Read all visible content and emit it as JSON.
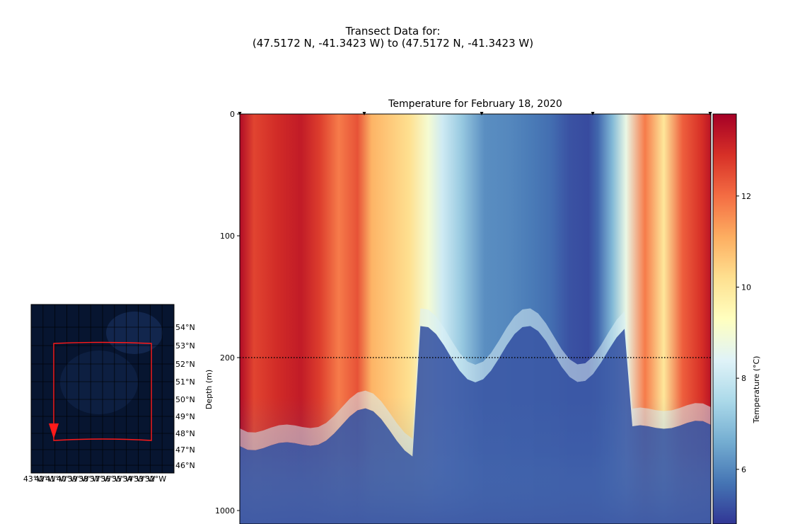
{
  "suptitle": {
    "line1": "Transect Data for:",
    "line2": "(47.5172 N, -41.3423 W) to (47.5172 N, -41.3423 W)"
  },
  "chart_data": [
    {
      "type": "heatmap",
      "title": "Temperature for February 18, 2020",
      "ylabel": "Depth (m)",
      "xlabel": "",
      "y_ticks": [
        {
          "label": "0",
          "value": 0
        },
        {
          "label": "100",
          "value": 100
        },
        {
          "label": "200",
          "value": 200
        },
        {
          "label": "1000",
          "value": 1000
        }
      ],
      "y_scale": "linear 0-200 m (upper), compressed 200-1000 m (lower)",
      "depth_reference_line": 200,
      "x_markers": 5,
      "colorbar": {
        "label": "Temperature (°C)",
        "colormap": "RdYlBu_r",
        "range": [
          4.8,
          13.8
        ],
        "ticks": [
          {
            "label": "6",
            "value": 6
          },
          {
            "label": "8",
            "value": 8
          },
          {
            "label": "10",
            "value": 10
          },
          {
            "label": "12",
            "value": 12
          }
        ]
      },
      "surface_temperature_profile": {
        "x_fraction": [
          0.0,
          0.03,
          0.08,
          0.13,
          0.17,
          0.21,
          0.25,
          0.28,
          0.32,
          0.36,
          0.4,
          0.43,
          0.47,
          0.52,
          0.57,
          0.62,
          0.66,
          0.7,
          0.74,
          0.76,
          0.79,
          0.82,
          0.86,
          0.9,
          0.94,
          0.98,
          1.0
        ],
        "temperature": [
          13.6,
          12.6,
          13.0,
          13.3,
          12.7,
          11.8,
          12.4,
          11.0,
          10.6,
          10.2,
          9.0,
          8.1,
          7.2,
          6.1,
          6.0,
          5.8,
          5.6,
          5.2,
          5.1,
          5.5,
          6.8,
          8.7,
          11.8,
          10.0,
          12.2,
          12.9,
          13.4
        ]
      },
      "deep_temperature": 5.3
    },
    {
      "type": "map",
      "x_ticks": [
        "43°W",
        "42°W",
        "41°W",
        "40°W",
        "39°W",
        "38°W",
        "37°W",
        "36°W",
        "35°W",
        "34°W",
        "33°W",
        "32°W"
      ],
      "y_ticks": [
        "54°N",
        "53°N",
        "52°N",
        "51°N",
        "50°N",
        "49°N",
        "48°N",
        "47°N",
        "46°N"
      ],
      "route_colour": "#ff0000",
      "background_colour": "#0b1d3f"
    }
  ]
}
